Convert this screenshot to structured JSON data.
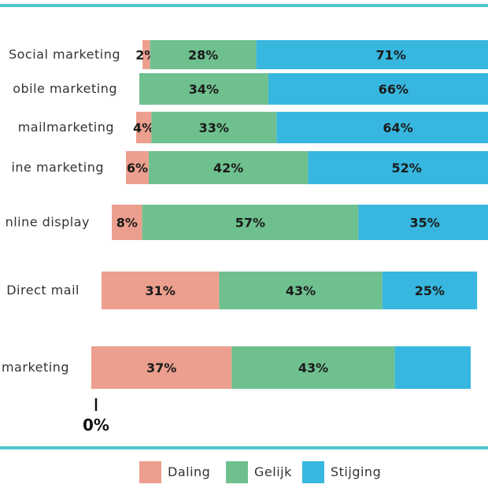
{
  "chart_data": {
    "type": "bar",
    "stacked": true,
    "orientation": "horizontal",
    "categories": [
      "Social marketing",
      "obile marketing",
      "mailmarketing",
      "ine marketing",
      "nline display",
      "Direct mail",
      "marketing"
    ],
    "series": [
      {
        "name": "Daling",
        "color": "#ec9f8e",
        "values": [
          2,
          null,
          4,
          6,
          8,
          31,
          37
        ],
        "labels": [
          "2%",
          "",
          "4%",
          "6%",
          "8%",
          "31%",
          "37%"
        ]
      },
      {
        "name": "Gelijk",
        "color": "#6fc08f",
        "values": [
          28,
          34,
          33,
          42,
          57,
          43,
          43
        ],
        "labels": [
          "28%",
          "34%",
          "33%",
          "42%",
          "57%",
          "43%",
          "43%"
        ]
      },
      {
        "name": "Stijging",
        "color": "#37b7df",
        "values": [
          71,
          66,
          64,
          52,
          35,
          25,
          20
        ],
        "labels": [
          "71%",
          "66%",
          "64%",
          "52%",
          "35%",
          "25%",
          ""
        ]
      }
    ],
    "axis_label": "0%",
    "legend_position": "bottom"
  }
}
